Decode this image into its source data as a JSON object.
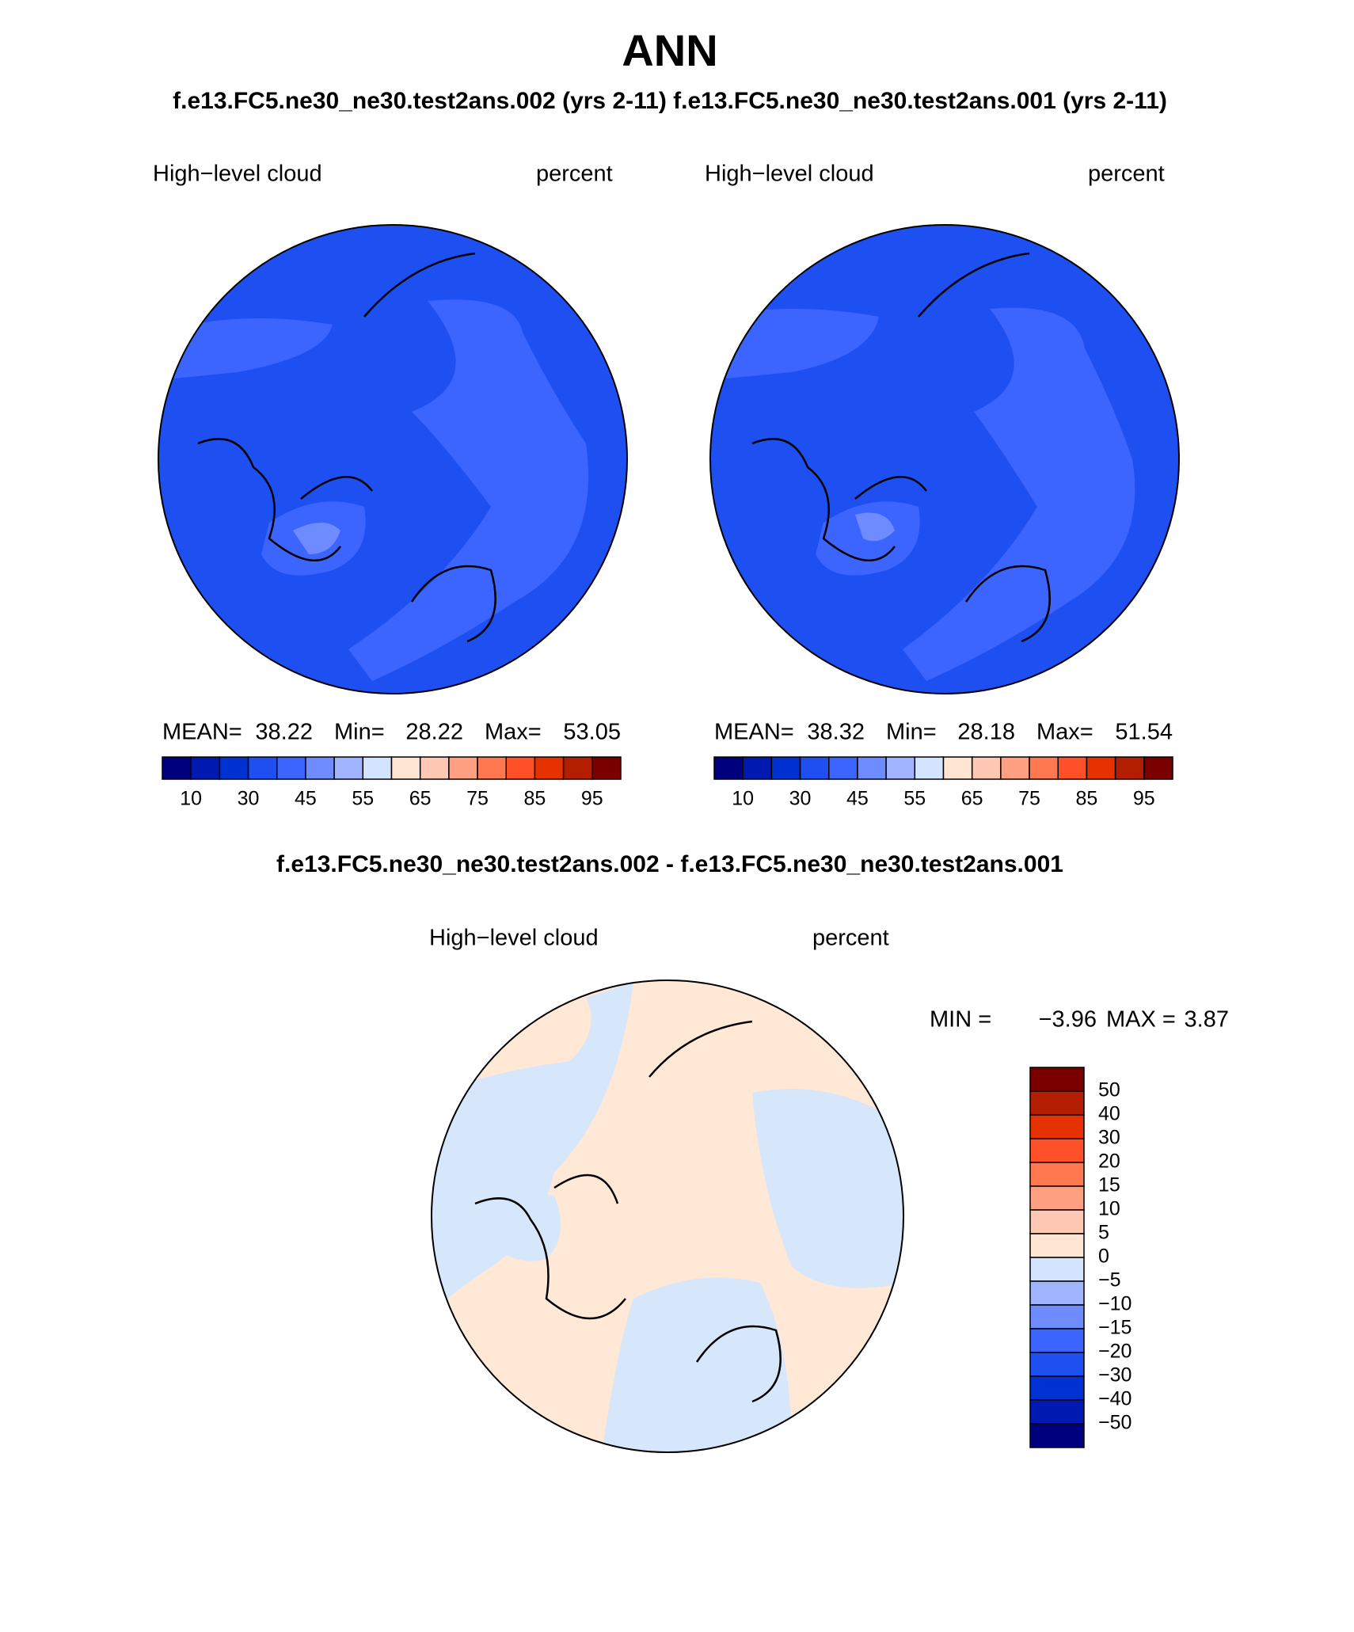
{
  "title": "ANN",
  "subtitle": "f.e13.FC5.ne30_ne30.test2ans.002 (yrs 2-11) f.e13.FC5.ne30_ne30.test2ans.001 (yrs 2-11)",
  "panels": [
    {
      "variable": "High−level cloud",
      "units": "percent",
      "mean_label": "MEAN=",
      "mean": "38.22",
      "min_label": "Min=",
      "min": "28.22",
      "max_label": "Max=",
      "max": "53.05"
    },
    {
      "variable": "High−level cloud",
      "units": "percent",
      "mean_label": "MEAN=",
      "mean": "38.32",
      "min_label": "Min=",
      "min": "28.18",
      "max_label": "Max=",
      "max": "51.54"
    }
  ],
  "colorbar": {
    "labels": [
      "10",
      "30",
      "45",
      "55",
      "65",
      "75",
      "85",
      "95"
    ],
    "colors": [
      "#00007f",
      "#0019b0",
      "#0032d2",
      "#1e4ff0",
      "#3c64ff",
      "#6e8cff",
      "#a0b4ff",
      "#d2e4ff",
      "#ffe6d2",
      "#ffc8b4",
      "#ffa082",
      "#ff7850",
      "#ff5028",
      "#e63200",
      "#b41e00",
      "#7a0000"
    ]
  },
  "difference": {
    "title": "f.e13.FC5.ne30_ne30.test2ans.002 - f.e13.FC5.ne30_ne30.test2ans.001",
    "variable": "High−level cloud",
    "units": "percent",
    "min_label": "MIN =",
    "min": "−3.96",
    "max_label": "MAX =",
    "max": "3.87",
    "colorbar_labels": [
      "50",
      "40",
      "30",
      "20",
      "15",
      "10",
      "5",
      "0",
      "−5",
      "−10",
      "−15",
      "−20",
      "−30",
      "−40",
      "−50"
    ]
  }
}
